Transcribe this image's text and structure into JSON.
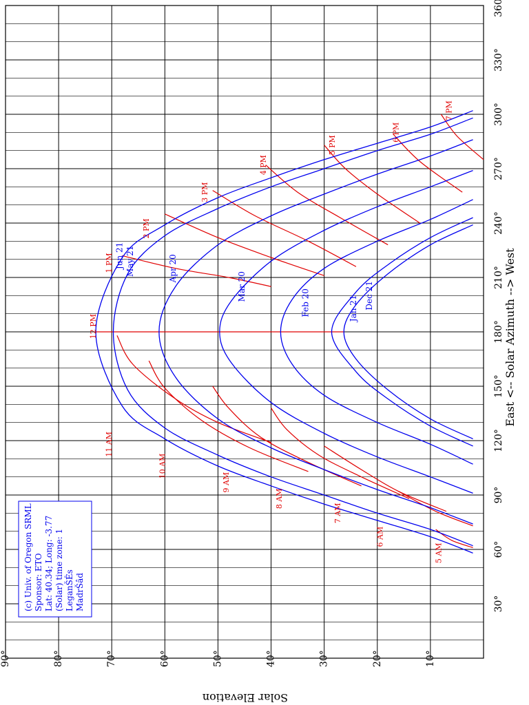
{
  "chart_data": {
    "type": "line",
    "xlabel": "East <-- Solar Azimuth --> West",
    "ylabel": "Solar Elevation",
    "xlim": [
      0,
      360
    ],
    "ylim": [
      0,
      90
    ],
    "grid": true,
    "x_ticks": [
      "30°",
      "60°",
      "90°",
      "120°",
      "150°",
      "180°",
      "210°",
      "240°",
      "270°",
      "300°",
      "330°",
      "360°"
    ],
    "y_ticks": [
      "10°",
      "20°",
      "30°",
      "40°",
      "50°",
      "60°",
      "70°",
      "80°",
      "90°"
    ],
    "colors": {
      "date_lines": "#0000ee",
      "hour_lines": "#e00000",
      "grid": "#000000"
    },
    "info_box": [
      "(c) Univ. of Oregon SRML",
      "Sponsor: ETO",
      "Lat: 40.34; Long: -3.77",
      "(Solar) time zone: 1",
      "LeganŠÊs",
      "MadrŠâd"
    ],
    "series": [
      {
        "name": "Jun 21",
        "label_at": [
          222,
          68
        ],
        "points": [
          [
            58,
            2
          ],
          [
            67,
            10
          ],
          [
            76,
            20
          ],
          [
            85,
            30
          ],
          [
            95,
            40
          ],
          [
            106,
            50
          ],
          [
            121,
            60
          ],
          [
            139,
            68
          ],
          [
            180,
            73
          ],
          [
            221,
            68
          ],
          [
            239,
            60
          ],
          [
            254,
            50
          ],
          [
            265,
            40
          ],
          [
            275,
            30
          ],
          [
            284,
            20
          ],
          [
            293,
            10
          ],
          [
            302,
            2
          ]
        ]
      },
      {
        "name": "May 21",
        "label_at": [
          219,
          66
        ],
        "points": [
          [
            62,
            2
          ],
          [
            71,
            10
          ],
          [
            80,
            20
          ],
          [
            90,
            30
          ],
          [
            100,
            40
          ],
          [
            112,
            50
          ],
          [
            127,
            60
          ],
          [
            148,
            67
          ],
          [
            180,
            69.7
          ],
          [
            212,
            67
          ],
          [
            233,
            60
          ],
          [
            248,
            50
          ],
          [
            260,
            40
          ],
          [
            270,
            30
          ],
          [
            280,
            20
          ],
          [
            289,
            10
          ],
          [
            298,
            2
          ]
        ]
      },
      {
        "name": "Apr 20",
        "label_at": [
          215,
          58
        ],
        "points": [
          [
            74,
            2
          ],
          [
            83,
            10
          ],
          [
            93,
            20
          ],
          [
            104,
            30
          ],
          [
            116,
            40
          ],
          [
            132,
            50
          ],
          [
            155,
            58
          ],
          [
            180,
            61.1
          ],
          [
            205,
            58
          ],
          [
            228,
            50
          ],
          [
            244,
            40
          ],
          [
            256,
            30
          ],
          [
            267,
            20
          ],
          [
            277,
            10
          ],
          [
            286,
            2
          ]
        ]
      },
      {
        "name": "Mar 20",
        "label_at": [
          205,
          45
        ],
        "points": [
          [
            91,
            2
          ],
          [
            100,
            10
          ],
          [
            111,
            20
          ],
          [
            124,
            30
          ],
          [
            141,
            40
          ],
          [
            163,
            47.5
          ],
          [
            180,
            49.7
          ],
          [
            197,
            47.5
          ],
          [
            219,
            40
          ],
          [
            236,
            30
          ],
          [
            249,
            20
          ],
          [
            260,
            10
          ],
          [
            269,
            2
          ]
        ]
      },
      {
        "name": "Feb 20",
        "label_at": [
          196,
          33
        ],
        "points": [
          [
            107,
            2
          ],
          [
            118,
            10
          ],
          [
            130,
            20
          ],
          [
            145,
            30
          ],
          [
            162,
            36
          ],
          [
            180,
            38.2
          ],
          [
            198,
            36
          ],
          [
            215,
            30
          ],
          [
            230,
            20
          ],
          [
            242,
            10
          ],
          [
            253,
            2
          ]
        ]
      },
      {
        "name": "Jan 21",
        "label_at": [
          193,
          24
        ],
        "points": [
          [
            117,
            2
          ],
          [
            128,
            10
          ],
          [
            143,
            18
          ],
          [
            158,
            24
          ],
          [
            180,
            28.6
          ],
          [
            202,
            24
          ],
          [
            217,
            18
          ],
          [
            232,
            10
          ],
          [
            243,
            2
          ]
        ]
      },
      {
        "name": "Dec 21",
        "label_at": [
          200,
          21
        ],
        "points": [
          [
            121,
            2
          ],
          [
            132,
            10
          ],
          [
            148,
            18
          ],
          [
            165,
            24
          ],
          [
            180,
            26.3
          ],
          [
            195,
            24
          ],
          [
            212,
            18
          ],
          [
            228,
            10
          ],
          [
            239,
            2
          ]
        ]
      }
    ],
    "hour_lines": [
      {
        "name": "5 AM",
        "label_at": [
          58,
          8
        ],
        "points": [
          [
            61,
            2
          ],
          [
            65,
            6
          ],
          [
            71,
            9
          ]
        ]
      },
      {
        "name": "6 AM",
        "label_at": [
          67,
          19
        ],
        "points": [
          [
            73,
            2
          ],
          [
            81,
            9
          ],
          [
            92,
            16
          ]
        ]
      },
      {
        "name": "7 AM",
        "label_at": [
          80,
          27
        ],
        "points": [
          [
            81,
            7
          ],
          [
            92,
            16
          ],
          [
            104,
            23
          ],
          [
            117,
            30
          ]
        ]
      },
      {
        "name": "8 AM",
        "label_at": [
          88,
          38
        ],
        "points": [
          [
            88,
            14
          ],
          [
            100,
            23
          ],
          [
            112,
            31
          ],
          [
            126,
            37
          ],
          [
            138,
            40
          ]
        ]
      },
      {
        "name": "9 AM",
        "label_at": [
          97,
          48
        ],
        "points": [
          [
            95,
            23
          ],
          [
            108,
            33
          ],
          [
            122,
            42
          ],
          [
            138,
            48
          ],
          [
            150,
            51
          ]
        ]
      },
      {
        "name": "10 AM",
        "label_at": [
          106,
          60
        ],
        "points": [
          [
            103,
            33
          ],
          [
            116,
            44
          ],
          [
            131,
            53
          ],
          [
            149,
            60
          ],
          [
            164,
            63
          ]
        ]
      },
      {
        "name": "11 AM",
        "label_at": [
          118,
          70
        ],
        "points": [
          [
            119,
            40
          ],
          [
            130,
            50
          ],
          [
            143,
            58
          ],
          [
            162,
            66
          ],
          [
            178,
            69
          ]
        ]
      },
      {
        "name": "12 PM",
        "label_at": [
          183,
          73
        ],
        "points": [
          [
            180,
            26.3
          ],
          [
            180,
            73
          ]
        ]
      },
      {
        "name": "1 PM",
        "label_at": [
          218,
          70
        ],
        "points": [
          [
            205,
            40
          ],
          [
            210,
            48
          ],
          [
            215,
            58
          ],
          [
            222,
            68
          ]
        ]
      },
      {
        "name": "2 PM",
        "label_at": [
          237,
          63
        ],
        "points": [
          [
            211,
            30
          ],
          [
            221,
            40
          ],
          [
            232,
            50
          ],
          [
            245,
            60
          ]
        ]
      },
      {
        "name": "3 PM",
        "label_at": [
          257,
          52
        ],
        "points": [
          [
            216,
            24
          ],
          [
            230,
            33
          ],
          [
            244,
            43
          ],
          [
            258,
            51
          ]
        ]
      },
      {
        "name": "4 PM",
        "label_at": [
          272,
          41
        ],
        "points": [
          [
            228,
            18
          ],
          [
            243,
            27
          ],
          [
            257,
            35
          ],
          [
            272,
            41
          ]
        ]
      },
      {
        "name": "5 PM",
        "label_at": [
          283,
          28
        ],
        "points": [
          [
            240,
            12
          ],
          [
            256,
            20
          ],
          [
            270,
            26
          ],
          [
            283,
            30
          ]
        ]
      },
      {
        "name": "6 PM",
        "label_at": [
          290,
          16
        ],
        "points": [
          [
            257,
            4
          ],
          [
            274,
            12
          ],
          [
            289,
            17
          ]
        ]
      },
      {
        "name": "7 PM",
        "label_at": [
          302,
          6
        ],
        "points": [
          [
            275,
            0
          ],
          [
            288,
            5
          ],
          [
            300,
            8
          ]
        ]
      }
    ]
  }
}
